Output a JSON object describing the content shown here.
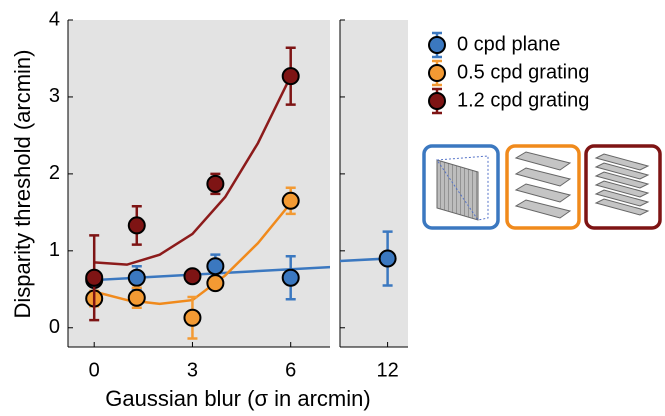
{
  "chart_data": {
    "type": "scatter",
    "ylabel": "Disparity threshold (arcmin)",
    "xlabel": "Gaussian blur (σ in arcmin)",
    "ylim": [
      -0.25,
      4
    ],
    "yticks": [
      0,
      1,
      2,
      3,
      4
    ],
    "panels": [
      {
        "xlim": [
          -0.8,
          7.2
        ],
        "xticks": [
          0,
          3,
          6
        ]
      },
      {
        "xlim": [
          10.6,
          12.6
        ],
        "xticks": [
          12
        ]
      }
    ],
    "legend": "right",
    "series": [
      {
        "name": "0 cpd plane",
        "color": "#3b78c0",
        "line_color": "#3b78c0",
        "x": [
          0,
          1.3,
          3.7,
          6,
          12
        ],
        "values": [
          0.62,
          0.65,
          0.8,
          0.65,
          0.9
        ],
        "errors": [
          0.08,
          0.15,
          0.15,
          0.28,
          0.35
        ],
        "fit": {
          "x": [
            0,
            12
          ],
          "y": [
            0.62,
            0.9
          ]
        }
      },
      {
        "name": "0.5 cpd grating",
        "color": "#f39a33",
        "line_color": "#f08a1c",
        "x": [
          0,
          1.3,
          3,
          3.7,
          6
        ],
        "values": [
          0.38,
          0.39,
          0.13,
          0.58,
          1.65
        ],
        "errors": [
          0.1,
          0.13,
          0.27,
          0.07,
          0.17
        ],
        "fit": {
          "x": [
            0,
            1,
            2,
            3,
            4,
            5,
            6
          ],
          "y": [
            0.47,
            0.36,
            0.31,
            0.36,
            0.68,
            1.1,
            1.62
          ]
        }
      },
      {
        "name": "1.2 cpd grating",
        "color": "#7e1414",
        "line_color": "#8c1b1b",
        "x": [
          0,
          1.3,
          3,
          3.7,
          6
        ],
        "values": [
          0.65,
          1.33,
          0.67,
          1.87,
          3.27
        ],
        "errors": [
          0.55,
          0.25,
          0.05,
          0.13,
          0.37
        ],
        "fit": {
          "x": [
            0,
            1,
            2,
            3,
            4,
            5,
            6
          ],
          "y": [
            0.85,
            0.82,
            0.95,
            1.22,
            1.7,
            2.4,
            3.27
          ]
        }
      }
    ]
  }
}
